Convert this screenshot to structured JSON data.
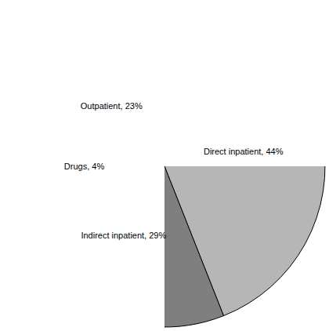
{
  "chart_data": {
    "type": "pie",
    "categories": [
      "Direct inpatient, 44%",
      "Indirect inpatient, 29%",
      "Drugs, 4%",
      "Outpatient, 23%"
    ],
    "values": [
      44,
      29,
      4,
      23
    ],
    "colors": [
      "#b6b6b6",
      "#7f7f7f",
      "#ffffff",
      "#ffffff"
    ]
  }
}
